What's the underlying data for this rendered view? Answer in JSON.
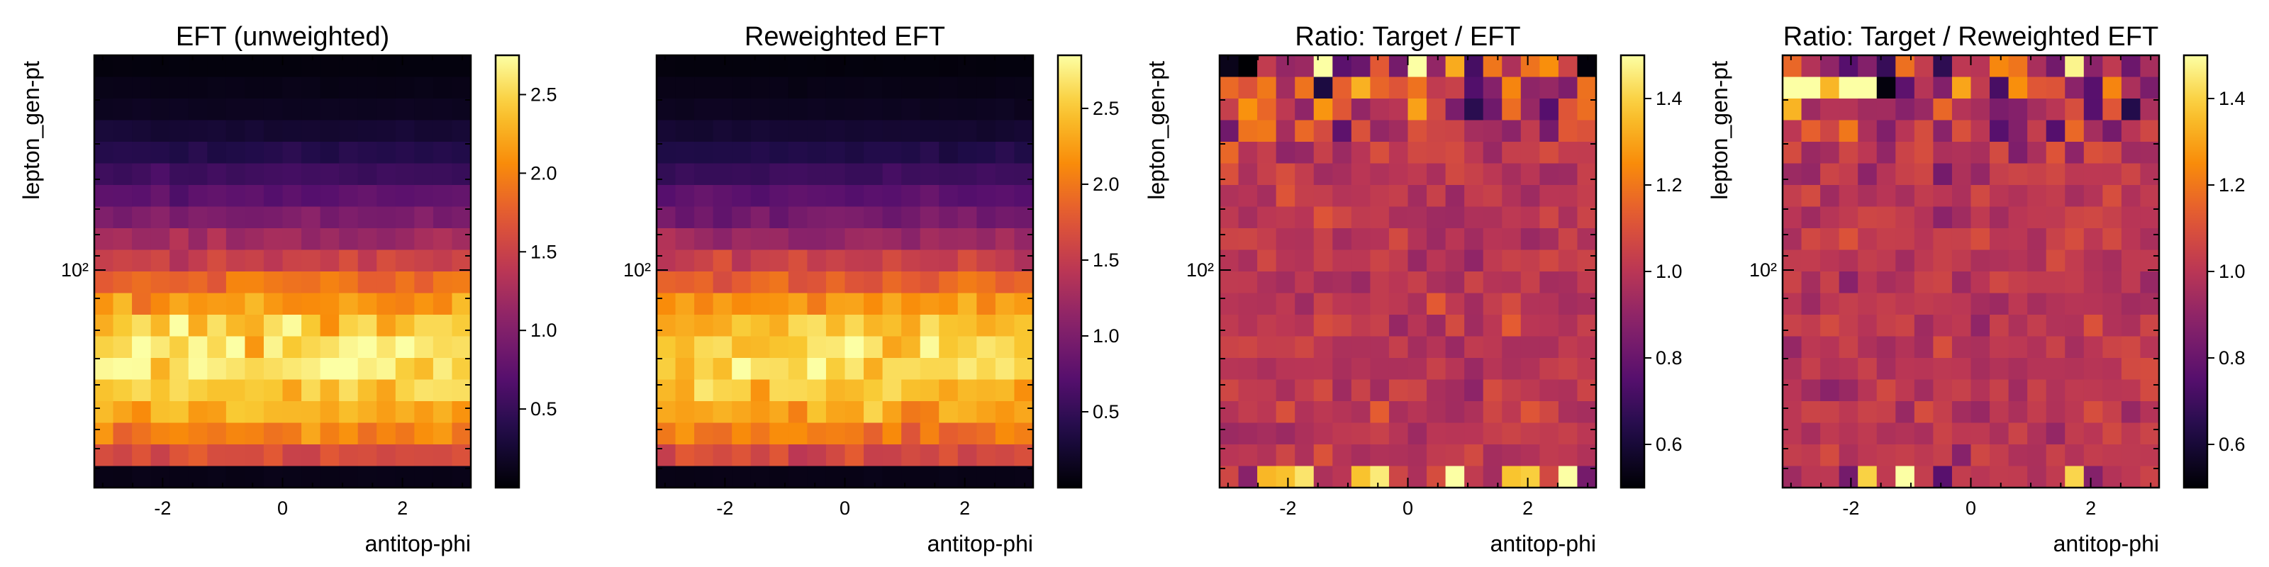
{
  "chart_data": [
    {
      "type": "heatmap",
      "title": "EFT (unweighted)",
      "xlabel": "antitop-phi",
      "ylabel": "lepton_gen-pt",
      "x_ticks": [
        -2,
        0,
        2
      ],
      "xlim": [
        -3.14,
        3.14
      ],
      "y_ticks": [
        100
      ],
      "y_tick_labels": [
        "10²"
      ],
      "yscale": "log",
      "colormap": "inferno",
      "colorbar": {
        "vmin": 0.0,
        "vmax": 2.75,
        "ticks": [
          0.5,
          1.0,
          1.5,
          2.0,
          2.5
        ],
        "tick_labels": [
          "0.5",
          "1.0",
          "1.5",
          "2.0",
          "2.5"
        ]
      },
      "grid": false,
      "profile": "eft",
      "seed": 11,
      "n_x": 20,
      "n_y": 20
    },
    {
      "type": "heatmap",
      "title": "Reweighted EFT",
      "xlabel": "antitop-phi",
      "ylabel": "",
      "x_ticks": [
        -2,
        0,
        2
      ],
      "xlim": [
        -3.14,
        3.14
      ],
      "y_ticks": [
        100
      ],
      "y_tick_labels": [
        "10²"
      ],
      "yscale": "log",
      "colormap": "inferno",
      "colorbar": {
        "vmin": 0.0,
        "vmax": 2.85,
        "ticks": [
          0.5,
          1.0,
          1.5,
          2.0,
          2.5
        ],
        "tick_labels": [
          "0.5",
          "1.0",
          "1.5",
          "2.0",
          "2.5"
        ]
      },
      "grid": false,
      "profile": "eft",
      "seed": 29,
      "n_x": 20,
      "n_y": 20
    },
    {
      "type": "heatmap",
      "title": "Ratio: Target / EFT",
      "xlabel": "antitop-phi",
      "ylabel": "lepton_gen-pt",
      "x_ticks": [
        -2,
        0,
        2
      ],
      "xlim": [
        -3.14,
        3.14
      ],
      "y_ticks": [
        100
      ],
      "y_tick_labels": [
        "10²"
      ],
      "yscale": "log",
      "colormap": "inferno",
      "colorbar": {
        "vmin": 0.5,
        "vmax": 1.5,
        "ticks": [
          0.6,
          0.8,
          1.0,
          1.2,
          1.4
        ],
        "tick_labels": [
          "0.6",
          "0.8",
          "1.0",
          "1.2",
          "1.4"
        ]
      },
      "grid": false,
      "profile": "ratio",
      "seed": 47,
      "n_x": 20,
      "n_y": 20
    },
    {
      "type": "heatmap",
      "title": "Ratio: Target / Reweighted EFT",
      "xlabel": "antitop-phi",
      "ylabel": "lepton_gen-pt",
      "x_ticks": [
        -2,
        0,
        2
      ],
      "xlim": [
        -3.14,
        3.14
      ],
      "y_ticks": [
        100
      ],
      "y_tick_labels": [
        "10²"
      ],
      "yscale": "log",
      "colormap": "inferno",
      "colorbar": {
        "vmin": 0.5,
        "vmax": 1.5,
        "ticks": [
          0.6,
          0.8,
          1.0,
          1.2,
          1.4
        ],
        "tick_labels": [
          "0.6",
          "0.8",
          "1.0",
          "1.2",
          "1.4"
        ]
      },
      "grid": false,
      "profile": "ratio",
      "seed": 83,
      "n_x": 20,
      "n_y": 20
    }
  ]
}
